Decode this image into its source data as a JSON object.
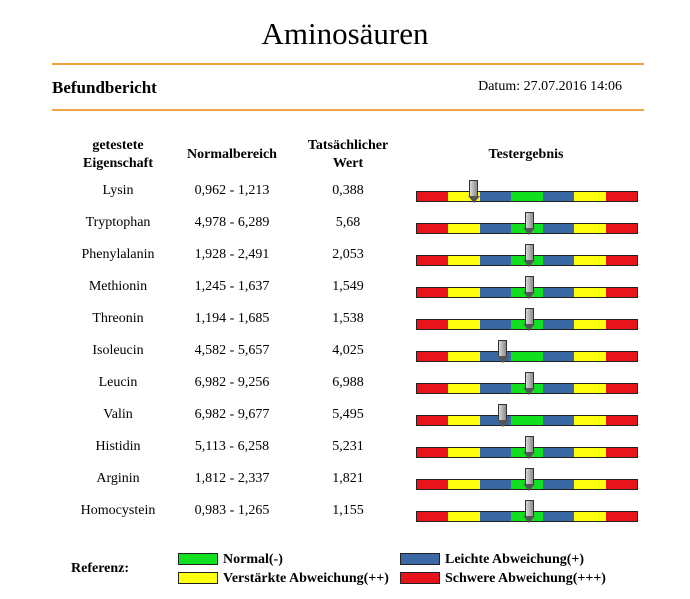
{
  "page_title": "Aminosäuren",
  "report": {
    "title": "Befundbericht",
    "date": "Datum: 27.07.2016 14:06"
  },
  "table": {
    "headers": {
      "property_line1": "getestete",
      "property_line2": "Eigenschaft",
      "normal_range": "Normalbereich",
      "actual_line1": "Tatsächlicher",
      "actual_line2": "Wert",
      "result": "Testergebnis"
    },
    "rows": [
      {
        "name": "Lysin",
        "range": "0,962 - 1,213",
        "value": "0,388",
        "position": 0.26
      },
      {
        "name": "Tryptophan",
        "range": "4,978 - 6,289",
        "value": "5,68",
        "position": 0.51
      },
      {
        "name": "Phenylalanin",
        "range": "1,928 - 2,491",
        "value": "2,053",
        "position": 0.51
      },
      {
        "name": "Methionin",
        "range": "1,245 - 1,637",
        "value": "1,549",
        "position": 0.51
      },
      {
        "name": "Threonin",
        "range": "1,194 - 1,685",
        "value": "1,538",
        "position": 0.51
      },
      {
        "name": "Isoleucin",
        "range": "4,582 - 5,657",
        "value": "4,025",
        "position": 0.39
      },
      {
        "name": "Leucin",
        "range": "6,982 - 9,256",
        "value": "6,988",
        "position": 0.51
      },
      {
        "name": "Valin",
        "range": "6,982 - 9,677",
        "value": "5,495",
        "position": 0.39
      },
      {
        "name": "Histidin",
        "range": "5,113 - 6,258",
        "value": "5,231",
        "position": 0.51
      },
      {
        "name": "Arginin",
        "range": "1,812 - 2,337",
        "value": "1,821",
        "position": 0.51
      },
      {
        "name": "Homocystein",
        "range": "0,983 - 1,265",
        "value": "1,155",
        "position": 0.51
      }
    ],
    "bar_segments": [
      "red",
      "yellow",
      "blue",
      "green",
      "blue",
      "yellow",
      "red"
    ]
  },
  "colors": {
    "red": "#e8141c",
    "yellow": "#ffff10",
    "blue": "#3b67a4",
    "green": "#10e020",
    "accent_line": "#f0a640"
  },
  "legend": {
    "label": "Referenz:",
    "items": [
      {
        "key": "green",
        "text": "Normal(-)"
      },
      {
        "key": "blue",
        "text": "Leichte Abweichung(+)"
      },
      {
        "key": "yellow",
        "text": "Verstärkte Abweichung(++)"
      },
      {
        "key": "red",
        "text": "Schwere Abweichung(+++)"
      }
    ]
  }
}
